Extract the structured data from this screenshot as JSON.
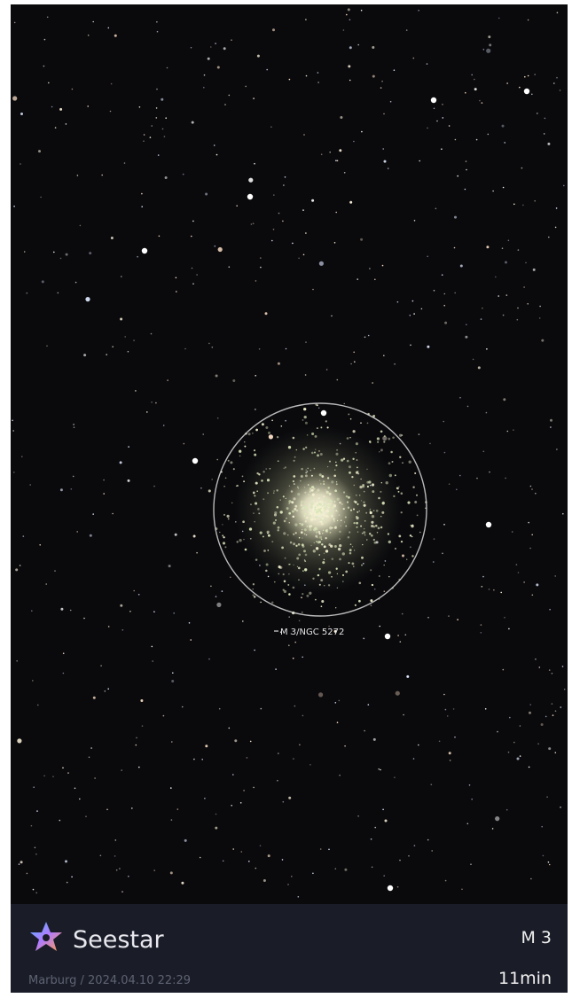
{
  "annotation": {
    "label": "M 3/NGC 5272"
  },
  "footer": {
    "brand": "Seestar",
    "location_time": "Marburg / 2024.04.10 22:29",
    "target": "M 3",
    "exposure": "11min"
  }
}
